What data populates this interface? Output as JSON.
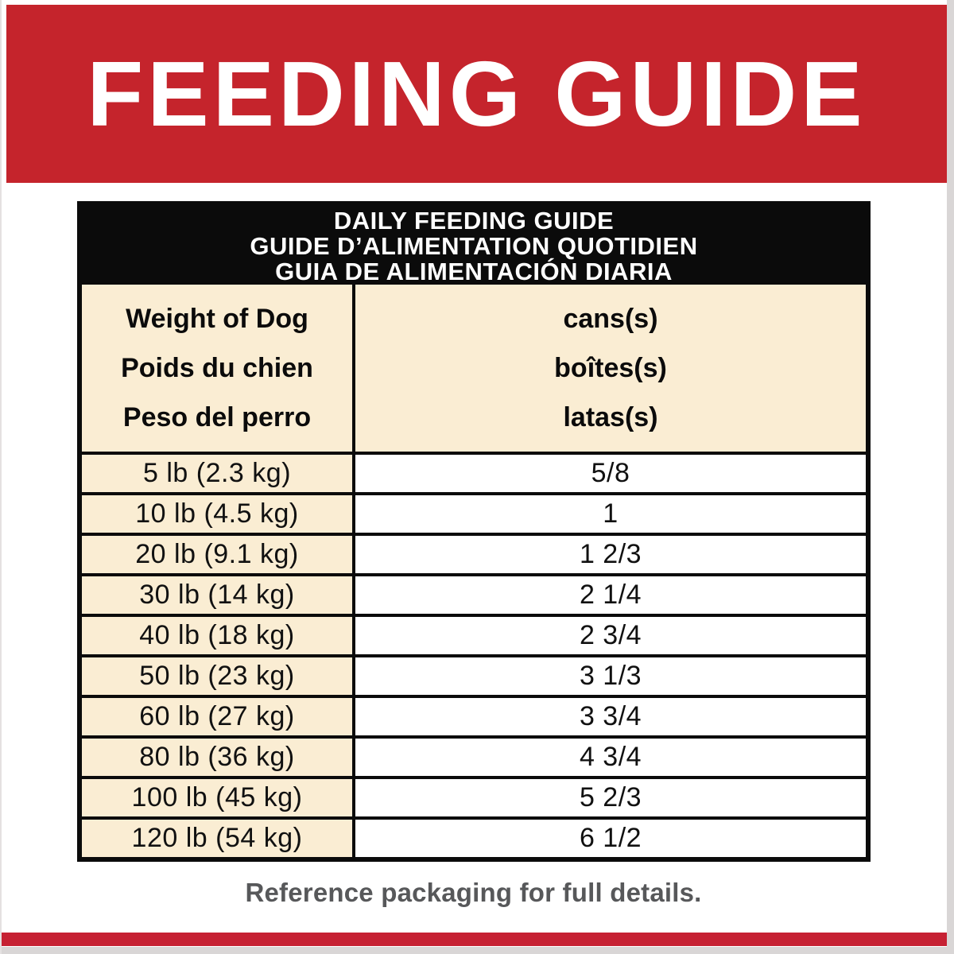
{
  "banner": {
    "title": "FEEDING GUIDE"
  },
  "table": {
    "title_lines": [
      "DAILY FEEDING GUIDE",
      "GUIDE D’ALIMENTATION QUOTIDIEN",
      "GUIA DE ALIMENTACIÓN DIARIA"
    ],
    "columns": {
      "weight_header_lines": [
        "Weight of Dog",
        "Poids du chien",
        "Peso del perro"
      ],
      "cans_header_lines": [
        "cans(s)",
        "boîtes(s)",
        "latas(s)"
      ]
    },
    "rows": [
      {
        "weight": "5 lb (2.3 kg)",
        "cans": "5/8"
      },
      {
        "weight": "10 lb (4.5 kg)",
        "cans": "1"
      },
      {
        "weight": "20 lb (9.1 kg)",
        "cans": "1 2/3"
      },
      {
        "weight": "30 lb (14 kg)",
        "cans": "2 1/4"
      },
      {
        "weight": "40 lb (18 kg)",
        "cans": "2 3/4"
      },
      {
        "weight": "50 lb (23 kg)",
        "cans": "3 1/3"
      },
      {
        "weight": "60 lb (27 kg)",
        "cans": "3 3/4"
      },
      {
        "weight": "80 lb (36 kg)",
        "cans": "4 3/4"
      },
      {
        "weight": "100 lb (45 kg)",
        "cans": "5 2/3"
      },
      {
        "weight": "120 lb (54 kg)",
        "cans": "6 1/2"
      }
    ]
  },
  "footer": {
    "note": "Reference packaging for full details."
  },
  "colors": {
    "red": "#C5242C",
    "cream": "#FAEDD3",
    "ink": "#0B0B0B",
    "gray-edge": "#D9D6D6",
    "gray-text": "#57585A"
  }
}
